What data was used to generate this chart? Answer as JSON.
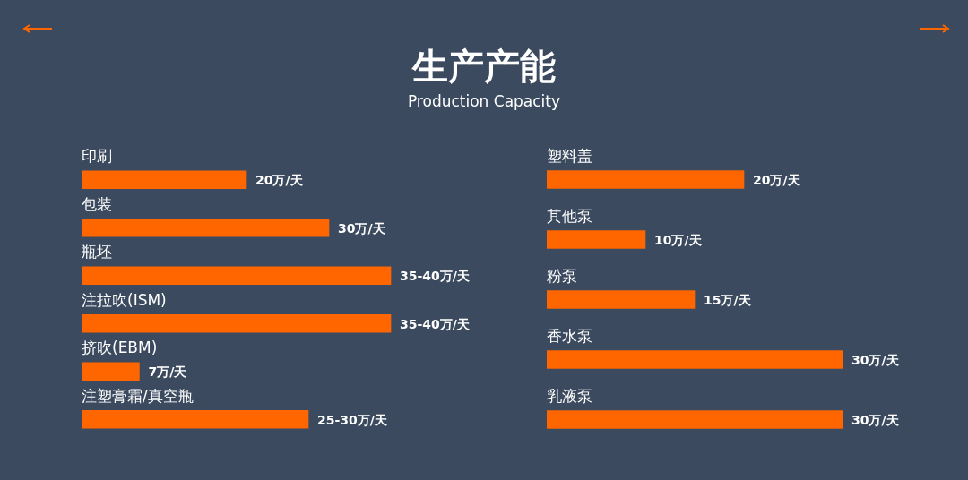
{
  "chart_data": [
    {
      "type": "other",
      "title": "生产产能",
      "subtitle": "Production Capacity"
    },
    {
      "type": "bar",
      "orientation": "horizontal",
      "categories": [
        "印刷",
        "包装",
        "瓶坯",
        "注拉吹(ISM)",
        "挤吹(EBM)",
        "注塑膏霜/真空瓶"
      ],
      "values": [
        20,
        30,
        37.5,
        37.5,
        7,
        27.5
      ],
      "color": "#ff6600",
      "value_labels": [
        "20万/天",
        "30万/天",
        "35-40万/天",
        "35-40万/天",
        "7万/天",
        "25-30万/天"
      ]
    },
    {
      "type": "bar",
      "orientation": "horizontal",
      "categories": [
        "塑料盖",
        "其他泵",
        "粉泵",
        "香水泵",
        "乳液泵"
      ],
      "values": [
        20,
        10,
        15,
        30,
        30
      ],
      "color": "#ff6600",
      "value_labels": [
        "20万/天",
        "10万/天",
        "15万/天",
        "30万/天",
        "30万/天"
      ]
    }
  ]
}
